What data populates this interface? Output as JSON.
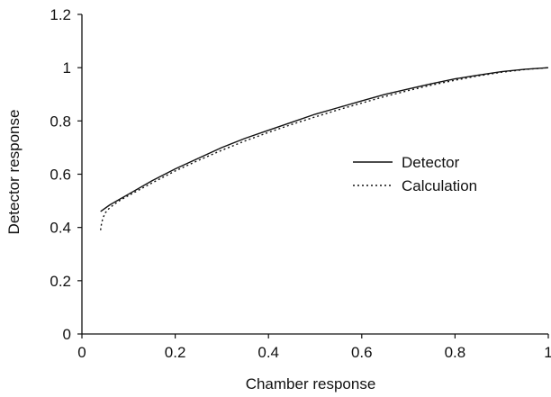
{
  "chart_data": {
    "type": "line",
    "title": "",
    "xlabel": "Chamber response",
    "ylabel": "Detector response",
    "xlim": [
      0,
      1
    ],
    "ylim": [
      0,
      1.2
    ],
    "xticks": [
      0,
      0.2,
      0.4,
      0.6,
      0.8,
      1
    ],
    "yticks": [
      0,
      0.2,
      0.4,
      0.6,
      0.8,
      1,
      1.2
    ],
    "xtick_labels": [
      "0",
      "0.2",
      "0.4",
      "0.6",
      "0.8",
      "1"
    ],
    "ytick_labels": [
      "0",
      "0.2",
      "0.4",
      "0.6",
      "0.8",
      "1",
      "1.2"
    ],
    "grid": false,
    "legend_position": "right-middle",
    "series": [
      {
        "name": "Detector",
        "line_style": "solid",
        "color": "#111111",
        "x": [
          0.04,
          0.06,
          0.08,
          0.1,
          0.15,
          0.2,
          0.25,
          0.3,
          0.35,
          0.4,
          0.45,
          0.5,
          0.55,
          0.6,
          0.65,
          0.7,
          0.75,
          0.8,
          0.85,
          0.9,
          0.95,
          1.0
        ],
        "y": [
          0.46,
          0.485,
          0.505,
          0.525,
          0.575,
          0.62,
          0.66,
          0.7,
          0.735,
          0.765,
          0.795,
          0.825,
          0.85,
          0.875,
          0.9,
          0.92,
          0.94,
          0.958,
          0.972,
          0.985,
          0.994,
          1.0
        ]
      },
      {
        "name": "Calculation",
        "line_style": "dotted",
        "color": "#111111",
        "x": [
          0.04,
          0.042,
          0.045,
          0.05,
          0.06,
          0.08,
          0.1,
          0.15,
          0.2,
          0.25,
          0.3,
          0.35,
          0.4,
          0.45,
          0.5,
          0.55,
          0.6,
          0.65,
          0.7,
          0.75,
          0.8,
          0.85,
          0.9,
          0.95,
          1.0
        ],
        "y": [
          0.39,
          0.415,
          0.435,
          0.455,
          0.475,
          0.5,
          0.52,
          0.567,
          0.612,
          0.652,
          0.69,
          0.725,
          0.757,
          0.787,
          0.815,
          0.842,
          0.867,
          0.892,
          0.914,
          0.935,
          0.953,
          0.969,
          0.983,
          0.993,
          1.0
        ]
      }
    ]
  }
}
